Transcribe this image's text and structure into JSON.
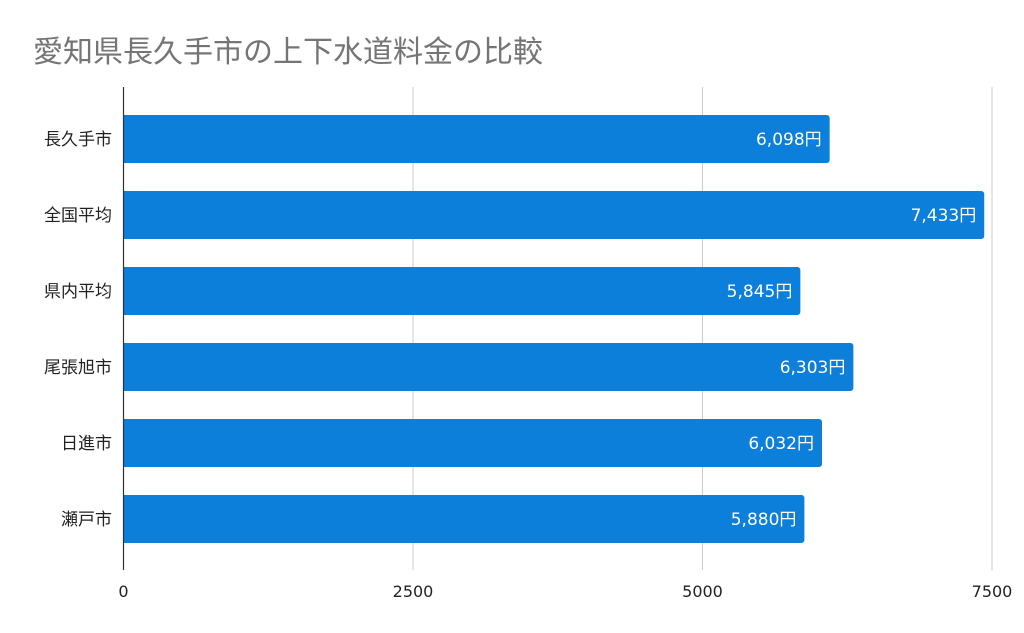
{
  "chart_data": {
    "type": "bar",
    "orientation": "horizontal",
    "title": "愛知県長久手市の上下水道料金の比較",
    "xlabel": "",
    "ylabel": "",
    "categories": [
      "長久手市",
      "全国平均",
      "県内平均",
      "尾張旭市",
      "日進市",
      "瀬戸市"
    ],
    "values": [
      6098,
      7433,
      5845,
      6303,
      6032,
      5880
    ],
    "data_labels": [
      "6,098円",
      "7,433円",
      "5,845円",
      "6,303円",
      "6,032円",
      "5,880円"
    ],
    "xlim": [
      0,
      7500
    ],
    "xticks": [
      0,
      2500,
      5000,
      7500
    ],
    "xtick_labels": [
      "0",
      "2500",
      "5000",
      "7500"
    ],
    "grid": true,
    "legend": "none",
    "color": "#0b7fd9"
  }
}
